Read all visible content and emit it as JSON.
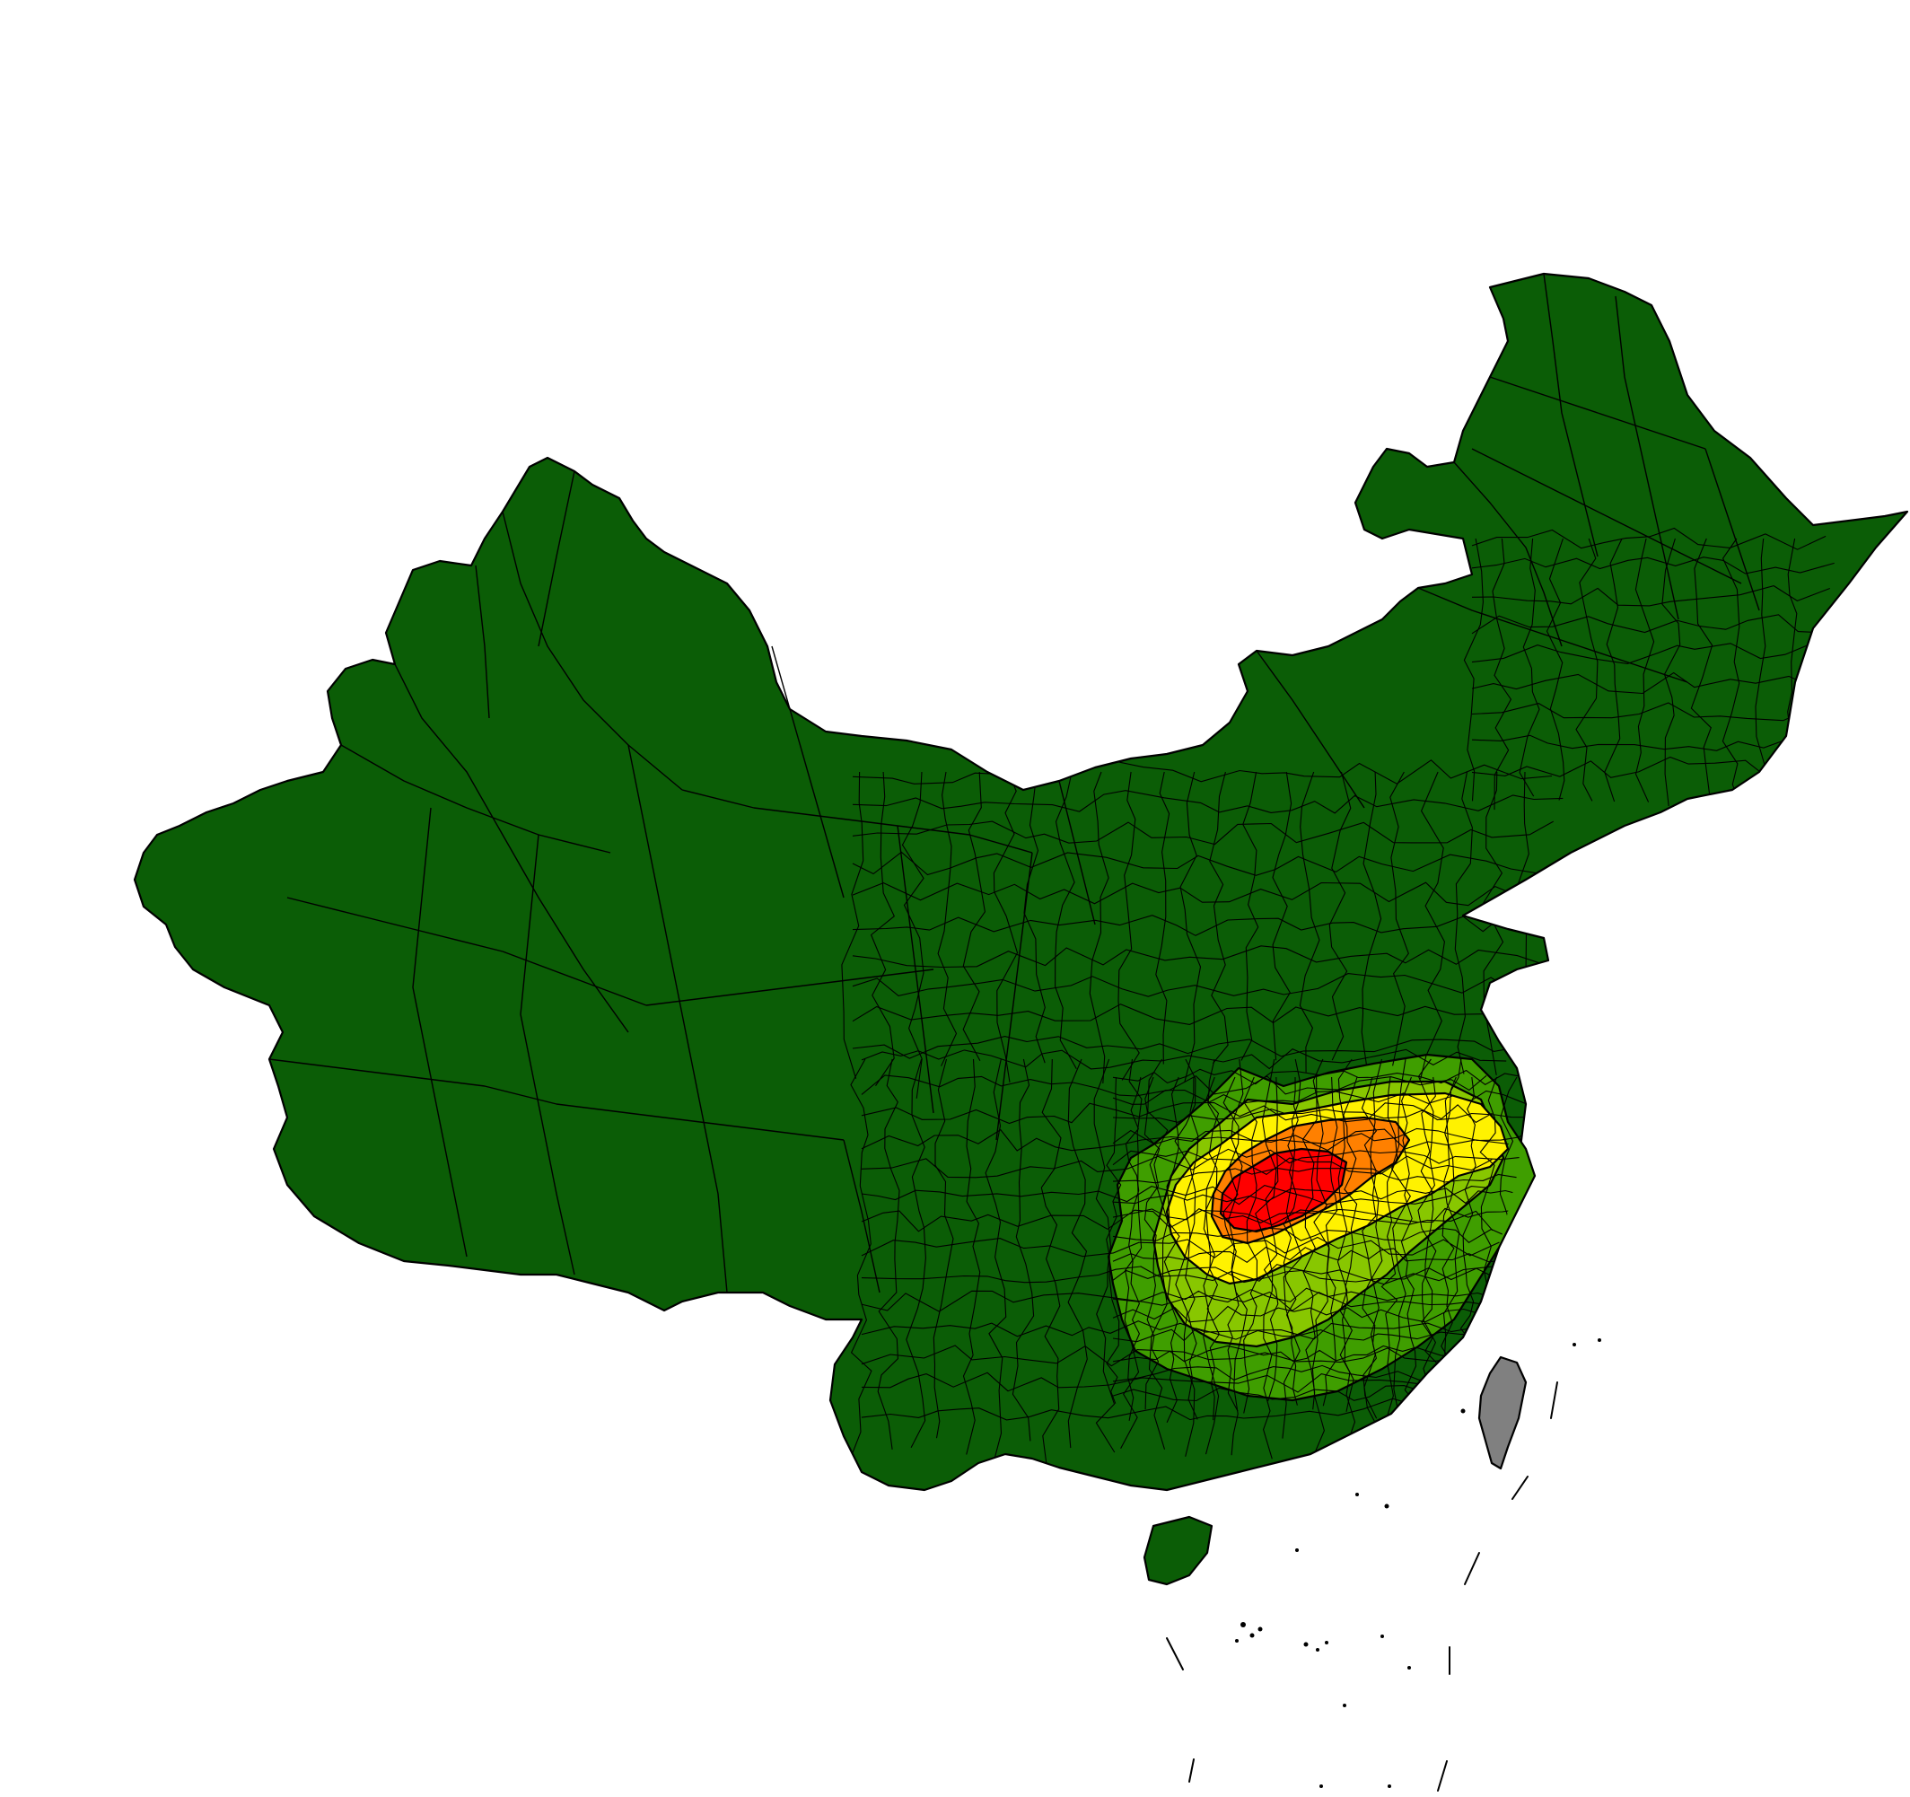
{
  "map": {
    "palette": {
      "background": "#ffffff",
      "lowest": "#0b5d06",
      "low": "#3f9e00",
      "medium_low": "#88c700",
      "medium": "#fff200",
      "high": "#ff8000",
      "highest": "#ff0000",
      "no_data": "#808080",
      "border": "#000000"
    },
    "icons": [
      "map-icon"
    ]
  }
}
